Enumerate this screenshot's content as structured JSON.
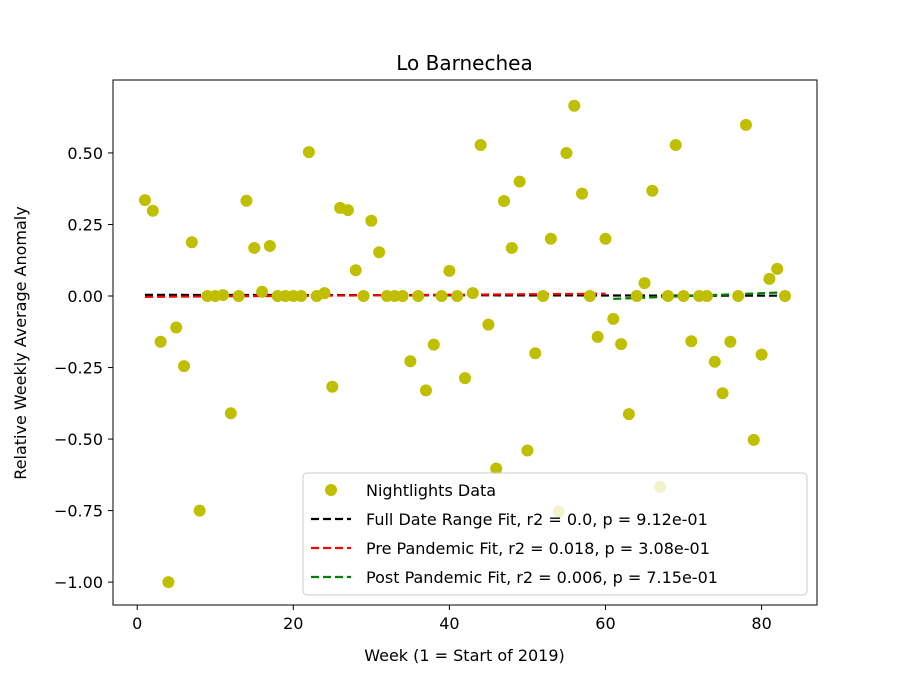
{
  "chart_data": {
    "type": "scatter",
    "title": "Lo Barnechea",
    "xlabel": "Week (1 = Start of 2019)",
    "ylabel": "Relative Weekly Average Anomaly",
    "xlim": [
      -3.1,
      87.1
    ],
    "ylim": [
      -1.08,
      0.755
    ],
    "xticks": [
      0,
      20,
      40,
      60,
      80
    ],
    "xtick_labels": [
      "0",
      "20",
      "40",
      "60",
      "80"
    ],
    "yticks": [
      -1.0,
      -0.75,
      -0.5,
      -0.25,
      0.0,
      0.25,
      0.5
    ],
    "ytick_labels": [
      "−1.00",
      "−0.75",
      "−0.50",
      "−0.25",
      "0.00",
      "0.25",
      "0.50"
    ],
    "grid": false,
    "legend_position": "lower right",
    "series": [
      {
        "name": "Nightlights Data",
        "kind": "scatter",
        "color": "#bfbf00",
        "points": [
          [
            1,
            0.335
          ],
          [
            2,
            0.298
          ],
          [
            3,
            -0.16
          ],
          [
            4,
            -1.0
          ],
          [
            5,
            -0.11
          ],
          [
            6,
            -0.245
          ],
          [
            7,
            0.188
          ],
          [
            8,
            -0.75
          ],
          [
            9,
            0.0
          ],
          [
            10,
            0.0
          ],
          [
            11,
            0.003
          ],
          [
            12,
            -0.41
          ],
          [
            13,
            0.0
          ],
          [
            14,
            0.333
          ],
          [
            15,
            0.168
          ],
          [
            16,
            0.015
          ],
          [
            17,
            0.175
          ],
          [
            18,
            0.0
          ],
          [
            19,
            0.0
          ],
          [
            20,
            0.0
          ],
          [
            21,
            0.0
          ],
          [
            22,
            0.503
          ],
          [
            23,
            0.0
          ],
          [
            24,
            0.01
          ],
          [
            25,
            -0.317
          ],
          [
            26,
            0.308
          ],
          [
            27,
            0.3
          ],
          [
            28,
            0.09
          ],
          [
            29,
            0.0
          ],
          [
            30,
            0.263
          ],
          [
            31,
            0.153
          ],
          [
            32,
            0.0
          ],
          [
            33,
            0.0
          ],
          [
            34,
            0.0
          ],
          [
            35,
            -0.228
          ],
          [
            36,
            0.0
          ],
          [
            37,
            -0.33
          ],
          [
            38,
            -0.17
          ],
          [
            39,
            0.0
          ],
          [
            40,
            0.088
          ],
          [
            41,
            0.0
          ],
          [
            42,
            -0.287
          ],
          [
            43,
            0.01
          ],
          [
            44,
            0.528
          ],
          [
            45,
            -0.1
          ],
          [
            46,
            -0.603
          ],
          [
            47,
            0.332
          ],
          [
            48,
            0.168
          ],
          [
            49,
            0.4
          ],
          [
            50,
            -0.54
          ],
          [
            51,
            -0.2
          ],
          [
            52,
            0.0
          ],
          [
            53,
            0.2
          ],
          [
            54,
            -0.753
          ],
          [
            55,
            0.5
          ],
          [
            56,
            0.665
          ],
          [
            57,
            0.358
          ],
          [
            58,
            0.0
          ],
          [
            59,
            -0.143
          ],
          [
            60,
            0.2
          ],
          [
            61,
            -0.08
          ],
          [
            62,
            -0.168
          ],
          [
            63,
            -0.413
          ],
          [
            64,
            0.0
          ],
          [
            65,
            0.045
          ],
          [
            66,
            0.368
          ],
          [
            67,
            -0.667
          ],
          [
            68,
            0.0
          ],
          [
            69,
            0.528
          ],
          [
            70,
            0.0
          ],
          [
            71,
            -0.158
          ],
          [
            72,
            0.0
          ],
          [
            73,
            0.0
          ],
          [
            74,
            -0.23
          ],
          [
            75,
            -0.34
          ],
          [
            76,
            -0.16
          ],
          [
            77,
            0.0
          ],
          [
            78,
            0.598
          ],
          [
            79,
            -0.503
          ],
          [
            80,
            -0.205
          ],
          [
            81,
            0.06
          ],
          [
            82,
            0.095
          ],
          [
            83,
            0.0
          ]
        ]
      },
      {
        "name": "Full Date Range Fit, r2 = 0.0, p = 9.12e-01",
        "kind": "line",
        "dash": true,
        "color": "#000000",
        "points": [
          [
            1,
            0.004
          ],
          [
            83,
            0.001
          ]
        ]
      },
      {
        "name": "Pre Pandemic Fit, r2 = 0.018, p = 3.08e-01",
        "kind": "line",
        "dash": true,
        "color": "#ff0000",
        "points": [
          [
            1,
            -0.003
          ],
          [
            60,
            0.008
          ]
        ]
      },
      {
        "name": "Post Pandemic Fit, r2 = 0.006, p = 7.15e-01",
        "kind": "line",
        "dash": true,
        "color": "#008000",
        "points": [
          [
            61,
            -0.01
          ],
          [
            83,
            0.013
          ]
        ]
      }
    ]
  }
}
